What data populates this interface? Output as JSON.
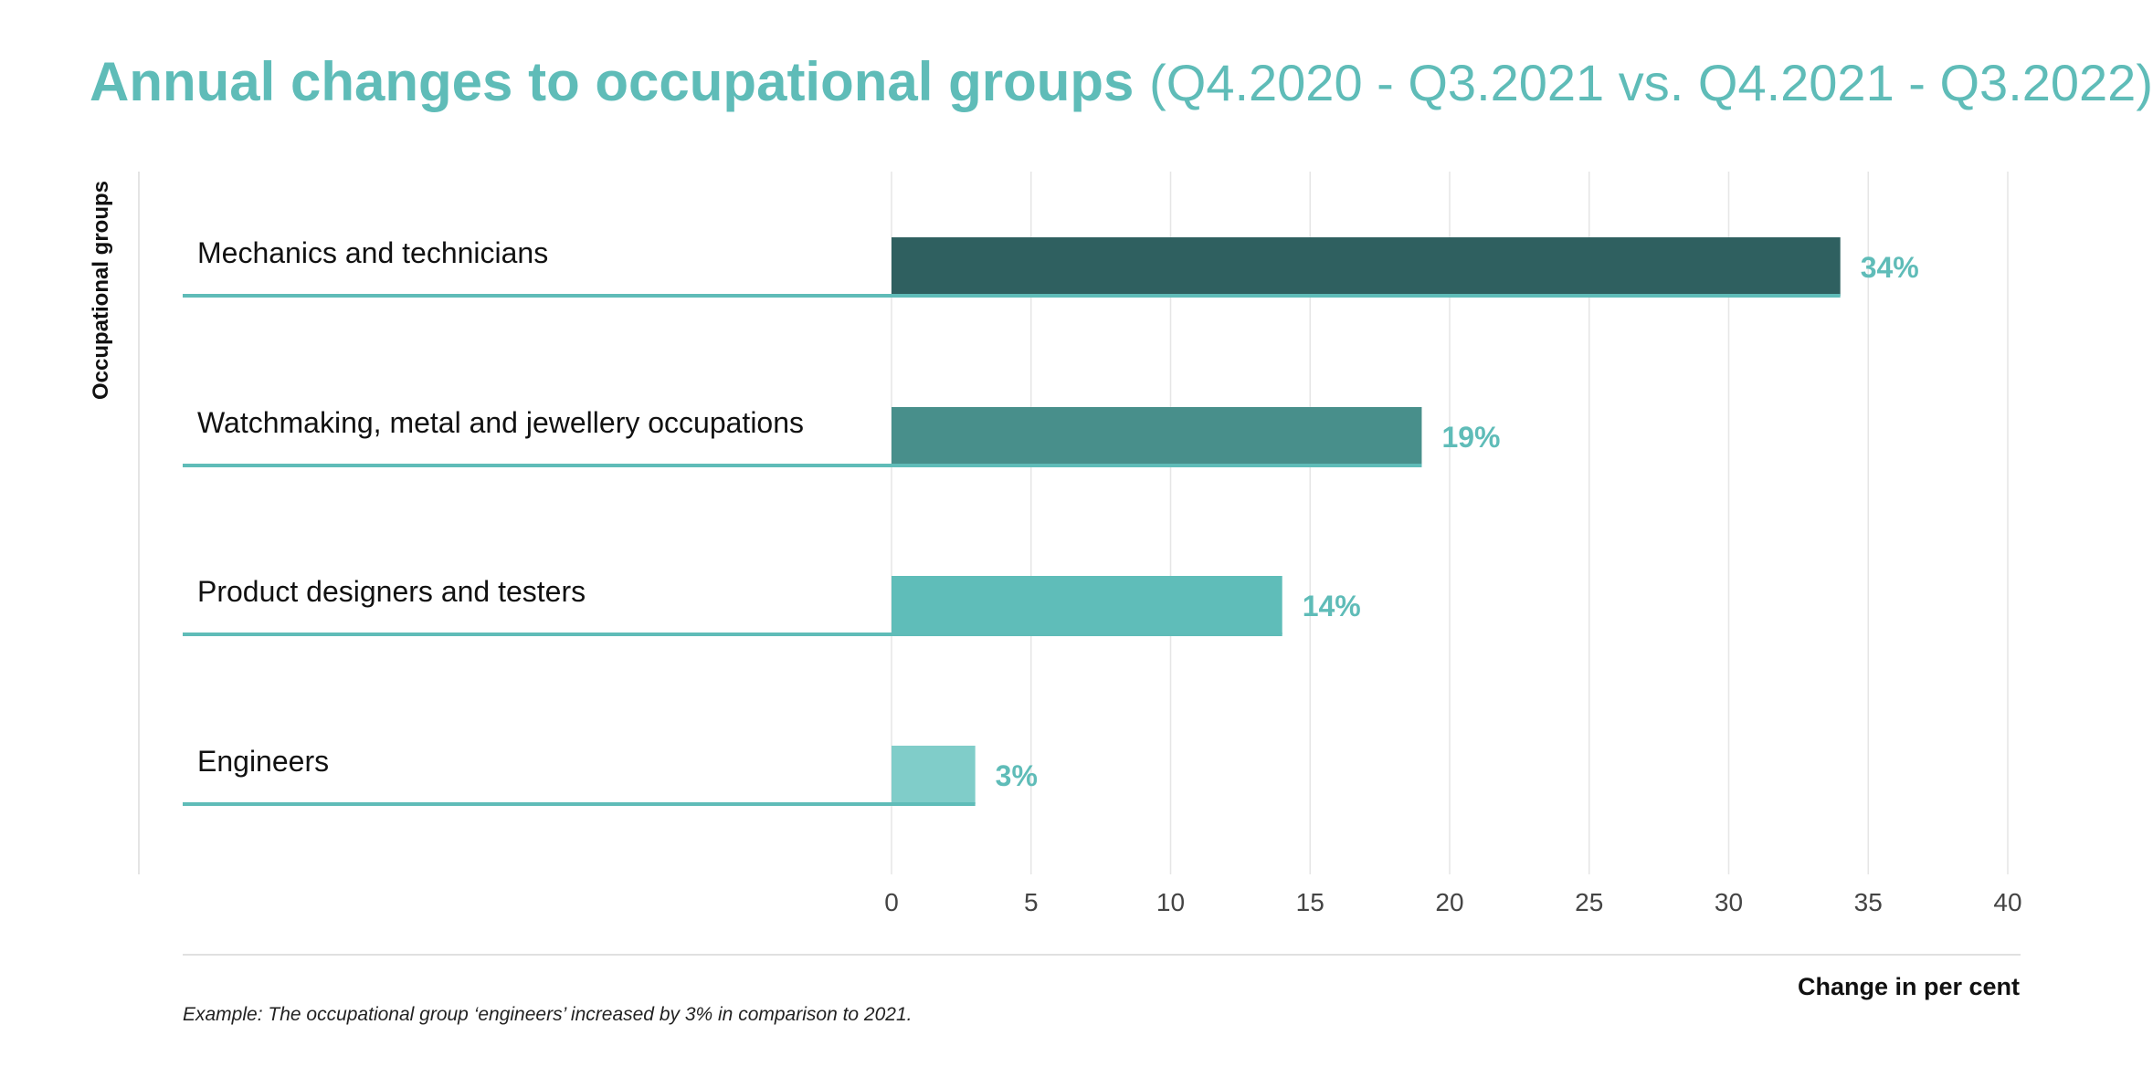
{
  "title": {
    "main": "Annual changes to occupational groups",
    "period": "(Q4.2020 - Q3.2021 vs. Q4.2021 - Q3.2022)"
  },
  "footnote": "Example: The occupational group ‘engineers’ increased by 3% in comparison to 2021.",
  "chart_data": {
    "type": "bar",
    "orientation": "horizontal",
    "categories": [
      "Mechanics and technicians",
      "Watchmaking, metal and jewellery occupations",
      "Product designers and testers",
      "Engineers"
    ],
    "values": [
      34,
      19,
      14,
      3
    ],
    "value_labels": [
      "34%",
      "19%",
      "14%",
      "3%"
    ],
    "bar_colors": [
      "#2f6060",
      "#488f8b",
      "#5fbdb9",
      "#80cdc9"
    ],
    "accent_color": "#5fbcb8",
    "title": "Annual changes to occupational groups (Q4.2020 - Q3.2021 vs. Q4.2021 - Q3.2022)",
    "xlabel": "Change in per cent",
    "ylabel": "Occupational groups",
    "xlim": [
      0,
      40
    ],
    "xticks": [
      0,
      5,
      10,
      15,
      20,
      25,
      30,
      35,
      40
    ],
    "grid": true
  }
}
